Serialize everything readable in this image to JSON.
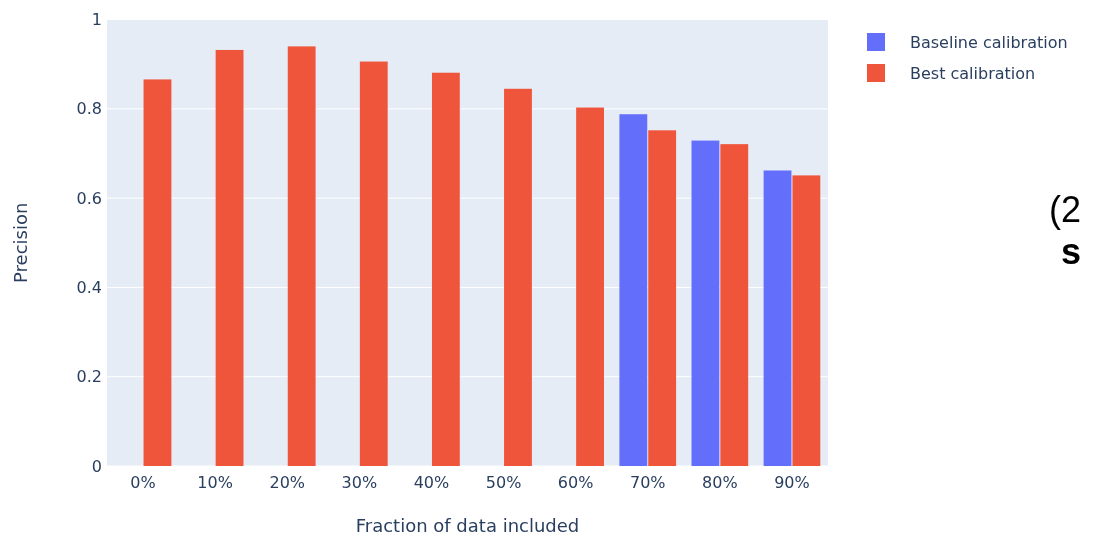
{
  "chart_data": {
    "type": "bar",
    "xlabel": "Fraction of data included",
    "ylabel": "Precision",
    "categories": [
      "0%",
      "10%",
      "20%",
      "30%",
      "40%",
      "50%",
      "60%",
      "70%",
      "80%",
      "90%"
    ],
    "series": [
      {
        "name": "Baseline calibration",
        "color": "#636efa",
        "values": [
          null,
          null,
          null,
          null,
          null,
          null,
          null,
          0.788,
          0.729,
          0.662
        ]
      },
      {
        "name": "Best calibration",
        "color": "#ef553b",
        "values": [
          0.866,
          0.932,
          0.94,
          0.906,
          0.881,
          0.845,
          0.803,
          0.752,
          0.721,
          0.651
        ]
      }
    ],
    "ylim": [
      0,
      1
    ],
    "yticks": [
      0,
      0.2,
      0.4,
      0.6,
      0.8,
      1
    ],
    "grid": "y",
    "legend": "top right",
    "annotations": [
      "(2",
      "s"
    ]
  }
}
